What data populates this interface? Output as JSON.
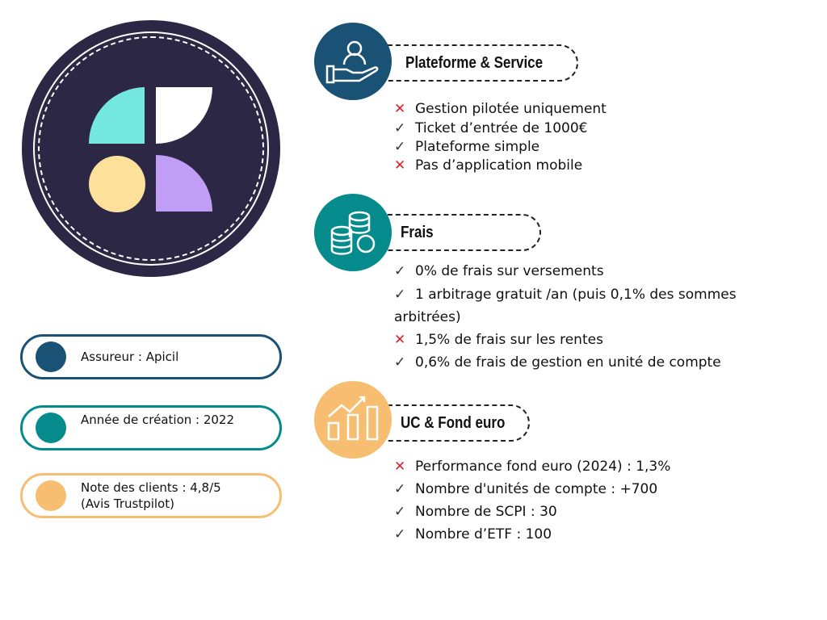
{
  "colors": {
    "navy": "#1a5276",
    "teal": "#058b8c",
    "orange": "#f7be72",
    "logo_bg": "#2c2745",
    "check": "#333333",
    "cross": "#d8232a"
  },
  "info": [
    {
      "text": "Assureur : Apicil",
      "color": "#1a5276"
    },
    {
      "text": "Année de création : 2022",
      "color": "#058b8c"
    },
    {
      "text": "Note des clients : 4,8/5 (Avis Trustpilot)",
      "color": "#f7be72"
    }
  ],
  "sections": [
    {
      "title": "Plateforme & Service",
      "icon": "hand-user-icon",
      "items": [
        {
          "mark": "cross",
          "text": "Gestion pilotée uniquement"
        },
        {
          "mark": "check",
          "text": "Ticket d’entrée de 1000€"
        },
        {
          "mark": "check",
          "text": "Plateforme simple"
        },
        {
          "mark": "cross",
          "text": "Pas d’application mobile"
        }
      ]
    },
    {
      "title": "Frais",
      "icon": "coins-icon",
      "items": [
        {
          "mark": "check",
          "text": "0% de frais sur versements"
        },
        {
          "mark": "check",
          "text": "1 arbitrage gratuit /an (puis 0,1% des sommes arbitrées)"
        },
        {
          "mark": "cross",
          "text": "1,5% de frais sur les rentes"
        },
        {
          "mark": "check",
          "text": "0,6% de frais de gestion en unité de compte"
        }
      ]
    },
    {
      "title": "UC & Fond euro",
      "icon": "growth-chart-icon",
      "items": [
        {
          "mark": "cross",
          "text": "Performance fond euro (2024) : 1,3%"
        },
        {
          "mark": "check",
          "text": "Nombre d'unités de compte : +700"
        },
        {
          "mark": "check",
          "text": "Nombre de SCPI : 30"
        },
        {
          "mark": "check",
          "text": "Nombre d’ETF : 100"
        }
      ]
    }
  ],
  "marks": {
    "check": "✓",
    "cross": "✕"
  }
}
